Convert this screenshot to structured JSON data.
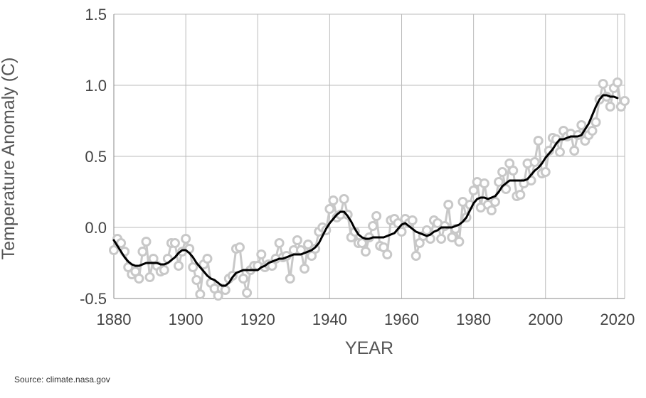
{
  "chart_data": {
    "type": "line",
    "xlabel": "YEAR",
    "ylabel": "Temperature Anomaly (C)",
    "xlim": [
      1880,
      2022
    ],
    "ylim": [
      -0.5,
      1.5
    ],
    "x_ticks": [
      1880,
      1900,
      1920,
      1940,
      1960,
      1980,
      2000,
      2020
    ],
    "y_ticks": [
      -0.5,
      0.0,
      0.5,
      1.0,
      1.5
    ],
    "y_tick_labels": [
      "-0.5",
      "0.0",
      "0.5",
      "1.0",
      "1.5"
    ],
    "grid": true,
    "colors": {
      "annual": "#c8c8c8",
      "smoothed": "#000000",
      "grid": "#bbbbbb"
    },
    "series": [
      {
        "values": [
          -0.16,
          -0.08,
          -0.11,
          -0.17,
          -0.28,
          -0.33,
          -0.31,
          -0.36,
          -0.17,
          -0.1,
          -0.35,
          -0.22,
          -0.27,
          -0.31,
          -0.3,
          -0.22,
          -0.11,
          -0.11,
          -0.27,
          -0.17,
          -0.08,
          -0.15,
          -0.28,
          -0.37,
          -0.47,
          -0.26,
          -0.22,
          -0.39,
          -0.43,
          -0.48,
          -0.43,
          -0.44,
          -0.36,
          -0.34,
          -0.15,
          -0.14,
          -0.36,
          -0.46,
          -0.3,
          -0.27,
          -0.27,
          -0.19,
          -0.28,
          -0.26,
          -0.27,
          -0.22,
          -0.11,
          -0.21,
          -0.2,
          -0.36,
          -0.16,
          -0.09,
          -0.16,
          -0.29,
          -0.12,
          -0.2,
          -0.15,
          -0.03,
          0.0,
          -0.02,
          0.13,
          0.19,
          0.07,
          0.09,
          0.2,
          0.09,
          -0.07,
          -0.03,
          -0.11,
          -0.11,
          -0.17,
          -0.07,
          0.01,
          0.08,
          -0.13,
          -0.14,
          -0.19,
          0.05,
          0.06,
          0.03,
          -0.03,
          0.06,
          0.03,
          0.05,
          -0.2,
          -0.11,
          -0.06,
          -0.02,
          -0.08,
          0.05,
          0.03,
          -0.08,
          0.01,
          0.16,
          -0.07,
          -0.01,
          -0.1,
          0.18,
          0.07,
          0.16,
          0.26,
          0.32,
          0.14,
          0.31,
          0.16,
          0.12,
          0.18,
          0.32,
          0.39,
          0.27,
          0.45,
          0.4,
          0.22,
          0.23,
          0.31,
          0.45,
          0.33,
          0.46,
          0.61,
          0.38,
          0.39,
          0.54,
          0.63,
          0.62,
          0.53,
          0.68,
          0.64,
          0.66,
          0.54,
          0.65,
          0.72,
          0.61,
          0.65,
          0.68,
          0.74,
          0.9,
          1.01,
          0.92,
          0.85,
          0.98,
          1.02,
          0.85,
          0.89
        ]
      },
      {
        "values": [
          -0.09,
          -0.13,
          -0.17,
          -0.21,
          -0.24,
          -0.26,
          -0.27,
          -0.27,
          -0.26,
          -0.25,
          -0.25,
          -0.25,
          -0.25,
          -0.26,
          -0.26,
          -0.25,
          -0.23,
          -0.21,
          -0.18,
          -0.16,
          -0.16,
          -0.18,
          -0.21,
          -0.25,
          -0.28,
          -0.31,
          -0.34,
          -0.36,
          -0.37,
          -0.39,
          -0.41,
          -0.41,
          -0.39,
          -0.35,
          -0.32,
          -0.31,
          -0.3,
          -0.3,
          -0.3,
          -0.3,
          -0.3,
          -0.28,
          -0.27,
          -0.25,
          -0.24,
          -0.23,
          -0.22,
          -0.22,
          -0.21,
          -0.2,
          -0.19,
          -0.19,
          -0.19,
          -0.18,
          -0.17,
          -0.16,
          -0.14,
          -0.11,
          -0.06,
          -0.01,
          0.03,
          0.06,
          0.09,
          0.11,
          0.11,
          0.08,
          0.04,
          -0.01,
          -0.05,
          -0.07,
          -0.08,
          -0.08,
          -0.07,
          -0.07,
          -0.07,
          -0.07,
          -0.06,
          -0.05,
          -0.04,
          -0.01,
          0.02,
          0.03,
          0.01,
          -0.01,
          -0.03,
          -0.04,
          -0.05,
          -0.06,
          -0.05,
          -0.03,
          -0.02,
          0.0,
          0.0,
          0.0,
          0.0,
          0.01,
          0.02,
          0.04,
          0.07,
          0.12,
          0.17,
          0.2,
          0.21,
          0.21,
          0.2,
          0.21,
          0.22,
          0.25,
          0.29,
          0.31,
          0.33,
          0.33,
          0.33,
          0.33,
          0.33,
          0.34,
          0.37,
          0.4,
          0.42,
          0.45,
          0.49,
          0.52,
          0.55,
          0.59,
          0.62,
          0.62,
          0.63,
          0.64,
          0.64,
          0.64,
          0.65,
          0.69,
          0.73,
          0.79,
          0.85,
          0.9,
          0.93,
          0.93,
          0.92,
          0.92,
          0.91
        ]
      }
    ]
  },
  "source_text": "Source: climate.nasa.gov"
}
